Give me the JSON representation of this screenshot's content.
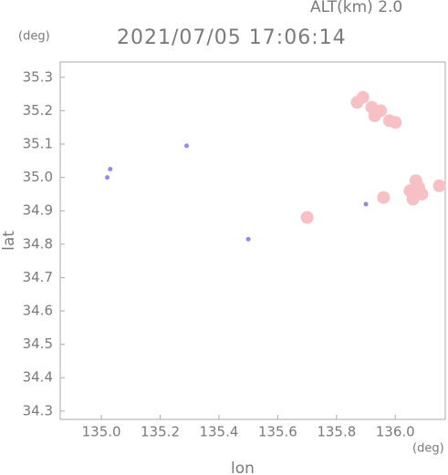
{
  "chart_data": {
    "type": "scatter",
    "altitude": "ALT(km) 2.0",
    "title": "2021/07/05 17:06:14",
    "y_unit": "(deg)",
    "x_unit": "(deg)",
    "xlabel": "lon",
    "ylabel": "lat",
    "xlim": [
      134.86,
      136.17
    ],
    "ylim": [
      34.275,
      35.346
    ],
    "xticks": [
      {
        "value": 135.0,
        "label": "135.0"
      },
      135.2,
      135.4,
      135.6,
      135.8,
      {
        "value": 136.0,
        "label": "136.0"
      }
    ],
    "yticks": [
      35.3,
      35.2,
      35.1,
      {
        "value": 35.0,
        "label": "35.0"
      },
      34.9,
      34.8,
      34.7,
      34.6,
      34.5,
      34.4,
      34.3
    ],
    "series": [
      {
        "color": "#f7c0c4",
        "x": [
          135.87,
          135.89,
          135.92,
          135.95,
          135.98,
          136.0,
          135.93,
          136.05,
          136.07,
          136.09,
          136.06,
          136.08,
          136.15,
          135.7,
          135.96
        ],
        "values": [
          35.225,
          35.24,
          35.21,
          35.2,
          35.17,
          35.165,
          35.185,
          34.96,
          34.99,
          34.95,
          34.935,
          34.97,
          34.975,
          34.88,
          34.94
        ]
      },
      {
        "color": "#8c8cf0",
        "x": [
          135.02,
          135.03,
          135.29,
          135.9,
          135.5
        ],
        "values": [
          35.0,
          35.025,
          35.095,
          34.92,
          34.815
        ]
      }
    ]
  }
}
